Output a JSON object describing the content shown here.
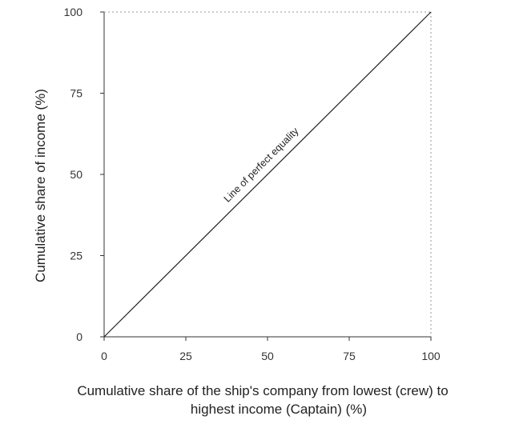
{
  "chart_data": {
    "type": "line",
    "xlabel": "Cumulative share of the ship's company from lowest (crew) to highest income (Captain) (%)",
    "xlabel_lines": [
      "Cumulative share of the ship's company from lowest (crew) to",
      "highest income (Captain) (%)"
    ],
    "ylabel": "Cumulative share of income (%)",
    "xlim": [
      0,
      100
    ],
    "ylim": [
      0,
      100
    ],
    "x_ticks": [
      "0",
      "25",
      "50",
      "75",
      "100"
    ],
    "y_ticks": [
      "0",
      "25",
      "50",
      "75",
      "100"
    ],
    "grid": false,
    "series": [
      {
        "name": "Line of perfect equality",
        "x": [
          0,
          100
        ],
        "y": [
          0,
          100
        ]
      }
    ],
    "annotations": [
      {
        "text": "Line of perfect equality",
        "x": 50,
        "y": 50
      }
    ],
    "reference_box": {
      "x": [
        0,
        100
      ],
      "y": [
        0,
        100
      ],
      "style": "dotted"
    }
  },
  "colors": {
    "line": "#222222",
    "axis": "#333333",
    "dotted": "#9a9a9a"
  }
}
